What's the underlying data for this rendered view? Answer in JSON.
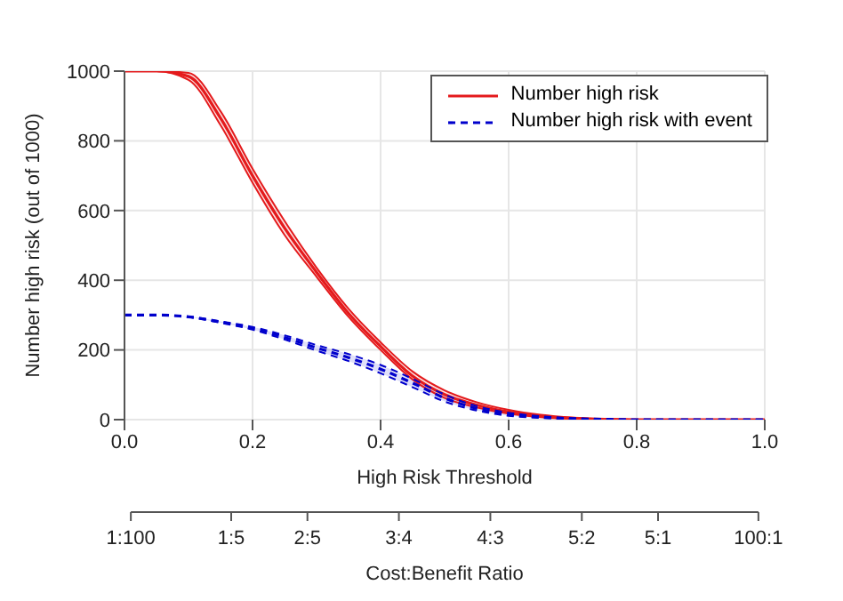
{
  "chart_data": {
    "type": "line",
    "xlabel": "High Risk Threshold",
    "ylabel": "Number high risk (out of 1000)",
    "x2label": "Cost:Benefit Ratio",
    "x": [
      0,
      0.05,
      0.1,
      0.15,
      0.2,
      0.25,
      0.3,
      0.35,
      0.4,
      0.45,
      0.5,
      0.55,
      0.6,
      0.65,
      0.7,
      0.75,
      0.8,
      0.85,
      0.9,
      0.95,
      1
    ],
    "series": [
      {
        "name": "Number high risk",
        "color": "#e41a1c",
        "line_style": "solid",
        "values": [
          1000,
          1000,
          985,
          865,
          700,
          550,
          423,
          305,
          210,
          125,
          72,
          42,
          22,
          10,
          4,
          1,
          0,
          0,
          0,
          0,
          0
        ],
        "lower": [
          1000,
          1000,
          975,
          845,
          680,
          530,
          410,
          295,
          200,
          115,
          62,
          35,
          17,
          7,
          2,
          0,
          0,
          0,
          0,
          0,
          0
        ],
        "upper": [
          1000,
          1000,
          995,
          885,
          720,
          570,
          436,
          318,
          222,
          138,
          84,
          50,
          28,
          14,
          6,
          2,
          0,
          0,
          0,
          0,
          0
        ]
      },
      {
        "name": "Number high risk with event",
        "color": "#0000cc",
        "line_style": "dashed",
        "values": [
          300,
          300,
          295,
          280,
          262,
          236,
          206,
          178,
          145,
          105,
          62,
          32,
          15,
          7,
          3,
          1,
          0,
          0,
          0,
          0,
          0
        ],
        "lower": [
          300,
          300,
          294,
          278,
          258,
          230,
          198,
          168,
          133,
          93,
          52,
          26,
          11,
          5,
          2,
          0,
          0,
          0,
          0,
          0,
          0
        ],
        "upper": [
          300,
          300,
          296,
          282,
          266,
          242,
          214,
          188,
          157,
          117,
          72,
          39,
          20,
          10,
          4,
          1,
          0,
          0,
          0,
          0,
          0
        ]
      }
    ],
    "xlim": [
      0,
      1
    ],
    "xticks": [
      {
        "value": 0,
        "label": "0.0"
      },
      0.2,
      0.4,
      0.6,
      0.8,
      {
        "value": 1,
        "label": "1.0"
      }
    ],
    "ylim": [
      0,
      1000
    ],
    "yticks": [
      0,
      200,
      400,
      600,
      800,
      1000
    ],
    "annotations": [
      "1:100",
      "1:5",
      "2:5",
      "3:4",
      "4:3",
      "5:2",
      "5:1",
      "100:1"
    ],
    "grid": true,
    "legend": "top right",
    "marker": "none"
  }
}
